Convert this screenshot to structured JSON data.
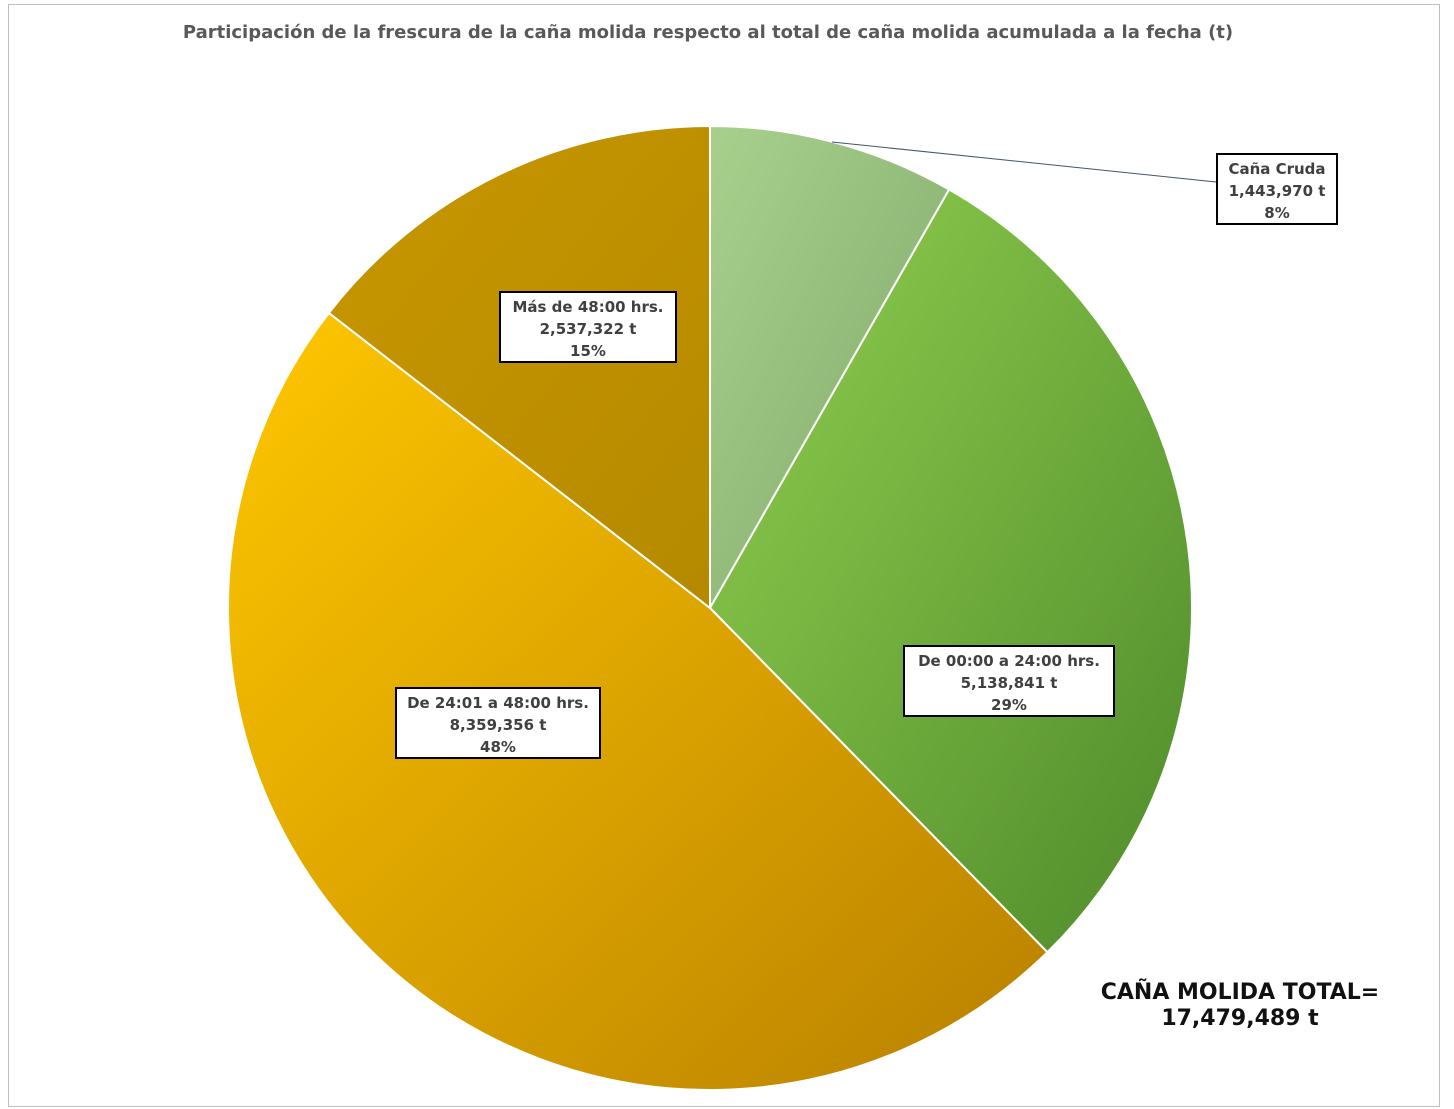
{
  "chart_data": {
    "type": "pie",
    "title": "Participación de la frescura de la caña molida respecto al total de caña molida acumulada a la fecha (t)",
    "slices": [
      {
        "label": "Caña Cruda",
        "value": 1443970,
        "value_text": "1,443,970  t",
        "percent": "8%",
        "color": "#9cc66f"
      },
      {
        "label": "De 00:00 a 24:00 hrs.",
        "value": 5138841,
        "value_text": "5,138,841 t",
        "percent": "29%",
        "color": "#7dbd3c"
      },
      {
        "label": "De 24:01 a 48:00 hrs.",
        "value": 8359356,
        "value_text": "8,359,356  t",
        "percent": "48%",
        "color": "#f0b400"
      },
      {
        "label": "Más de 48:00 hrs.",
        "value": 2537322,
        "value_text": "2,537,322  t",
        "percent": "15%",
        "color": "#c59300"
      }
    ],
    "start_angle_deg": 0,
    "direction": "clockwise"
  },
  "total_label": "CAÑA MOLIDA TOTAL=",
  "total_value": "17,479,489 t"
}
